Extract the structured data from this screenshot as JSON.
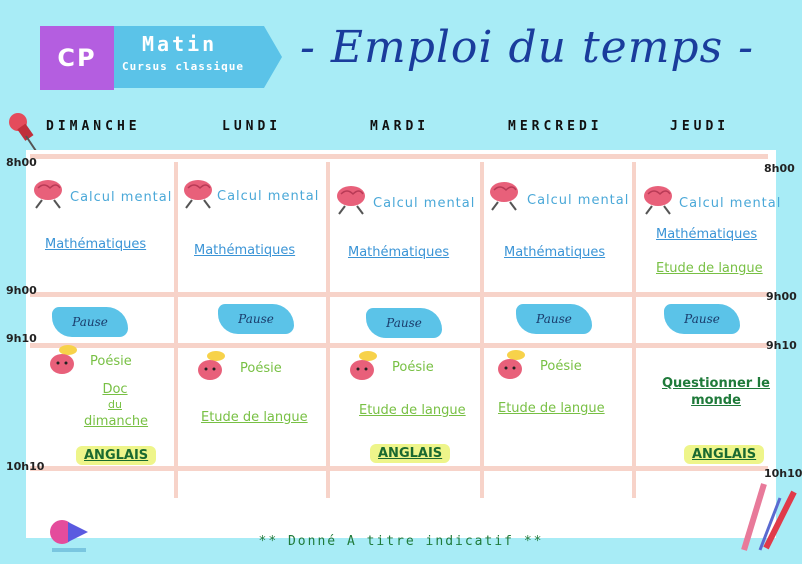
{
  "header": {
    "badge_cp": "CP",
    "badge_matin": "Matin",
    "badge_subtitle": "Cursus classique",
    "title": "- Emploi du temps -"
  },
  "days": [
    "DIMANCHE",
    "LUNDI",
    "MARDI",
    "MERCREDI",
    "JEUDI"
  ],
  "times": {
    "t0800": "8h00",
    "t0900": "9h00",
    "t0910": "9h10",
    "t1010": "10h10"
  },
  "slots": {
    "dimanche": {
      "calc": "Calcul mental",
      "math": "Mathématiques",
      "pause": "Pause",
      "poesie": "Poésie",
      "doc_line1": "Doc",
      "doc_line2": "du",
      "doc_line3": "dimanche",
      "anglais": "ANGLAIS"
    },
    "lundi": {
      "calc": "Calcul mental",
      "math": "Mathématiques",
      "pause": "Pause",
      "poesie": "Poésie",
      "langue": "Etude de langue"
    },
    "mardi": {
      "calc": "Calcul mental",
      "math": "Mathématiques",
      "pause": "Pause",
      "poesie": "Poésie",
      "langue": "Etude de langue",
      "anglais": "ANGLAIS"
    },
    "mercredi": {
      "calc": "Calcul mental",
      "math": "Mathématiques",
      "pause": "Pause",
      "poesie": "Poésie",
      "langue": "Etude de langue"
    },
    "jeudi": {
      "calc": "Calcul mental",
      "math": "Mathématiques",
      "langue": "Etude de langue",
      "pause": "Pause",
      "monde_line1": "Questionner le",
      "monde_line2": "monde",
      "anglais": "ANGLAIS"
    }
  },
  "footer": "** Donné A titre indicatif **",
  "colors": {
    "background": "#a8ecf6",
    "title": "#1a3c9c",
    "cp_badge": "#b45ee0",
    "matin_badge": "#5bc3e8",
    "grid_lines": "#f7d3c9",
    "link_blue": "#3a94d6",
    "link_green": "#78c044",
    "anglais_highlight": "#eef58a"
  },
  "icons": [
    "pin-icon",
    "brain-runner-icon",
    "brain-thinking-icon",
    "logo-icon",
    "pencils-icon"
  ]
}
